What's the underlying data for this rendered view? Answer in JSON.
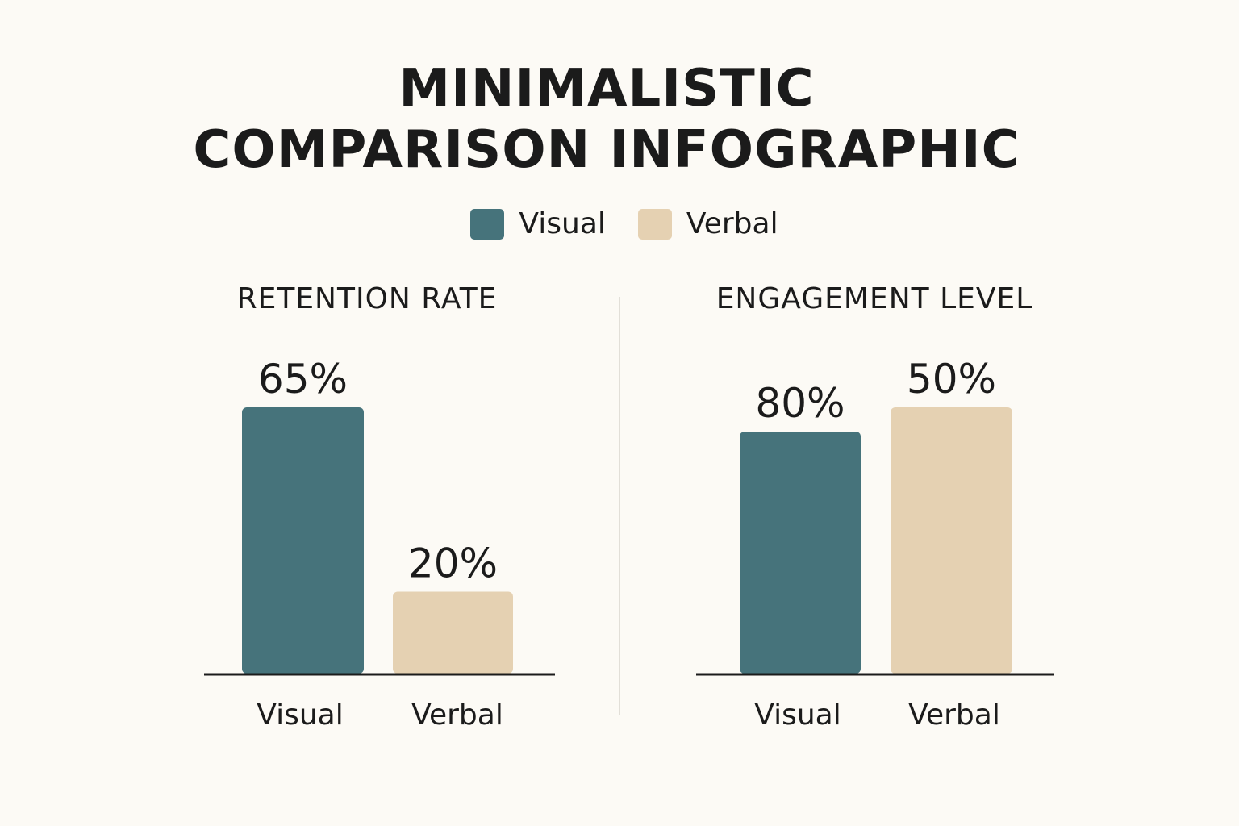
{
  "title": {
    "line1": "MINIMALISTIC",
    "line2": "COMPARISON INFOGRAPHIC"
  },
  "legend": [
    {
      "label": "Visual",
      "color": "#46737b"
    },
    {
      "label": "Verbal",
      "color": "#e5d1b2"
    }
  ],
  "chart_data": [
    {
      "type": "bar",
      "title": "RETENTION RATE",
      "categories": [
        "Visual",
        "Verbal"
      ],
      "values": [
        65,
        20
      ],
      "value_labels": [
        "65%",
        "20%"
      ],
      "colors": [
        "#46737b",
        "#e5d1b2"
      ],
      "ylim": [
        0,
        100
      ],
      "xlabel": "",
      "ylabel": ""
    },
    {
      "type": "bar",
      "title": "ENGAGEMENT LEVEL",
      "categories": [
        "Visual",
        "Verbal"
      ],
      "values": [
        80,
        50
      ],
      "value_labels": [
        "80%",
        "50%"
      ],
      "colors": [
        "#46737b",
        "#e5d1b2"
      ],
      "ylim": [
        0,
        100
      ],
      "xlabel": "",
      "ylabel": ""
    }
  ]
}
